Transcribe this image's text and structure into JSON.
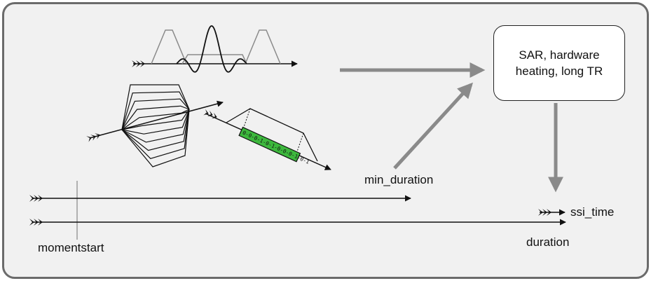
{
  "box": {
    "line1": "SAR, hardware",
    "line2": "heating, long TR"
  },
  "labels": {
    "min_duration": "min_duration",
    "ssi_time": "ssi_time",
    "duration": "duration",
    "momentstart": "momentstart"
  },
  "adc_samples": "0-0-0-1-0-1-0-0-0-1-0-1",
  "colors": {
    "frame_border": "#6b6b6b",
    "frame_fill": "#f1f1f1",
    "flow_arrow": "#8a8a8a",
    "adc_fill": "#3db83d",
    "gradient_trapezoid": "#8a8a8a"
  }
}
